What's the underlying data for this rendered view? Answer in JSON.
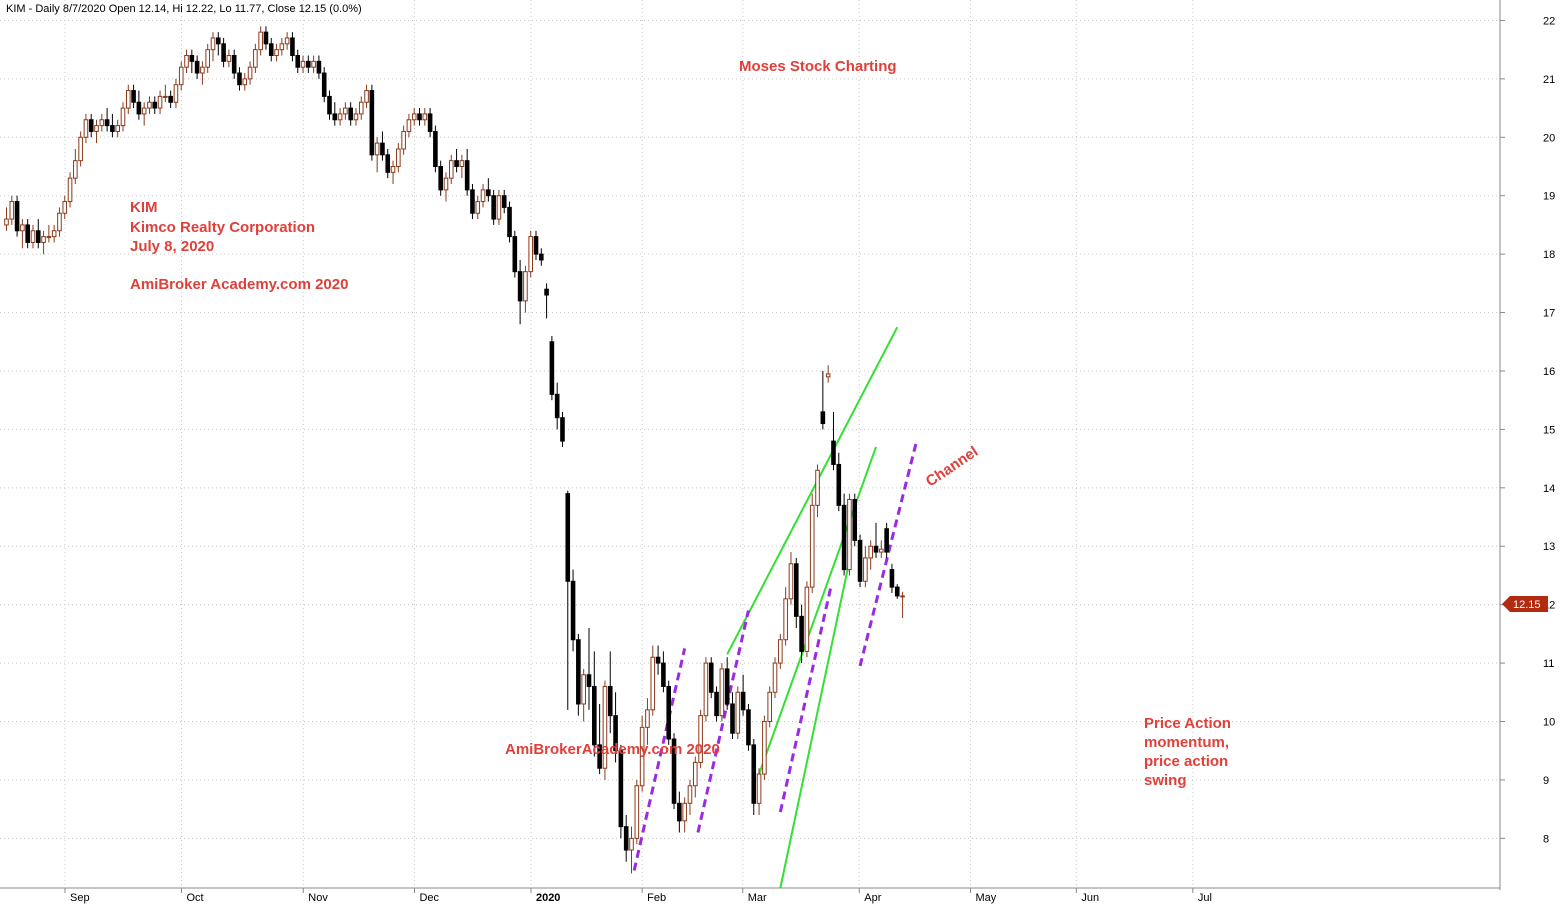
{
  "chart_data": {
    "type": "candlestick",
    "header": "KIM - Daily 8/7/2020 Open 12.14, Hi 12.22, Lo 11.77, Close 12.15 (0.0%)",
    "y_ticks": [
      8,
      9,
      10,
      11,
      12,
      13,
      14,
      15,
      16,
      17,
      18,
      19,
      20,
      21,
      22
    ],
    "ylim": [
      7.15,
      22.35
    ],
    "x_ticks": [
      {
        "label": "Sep",
        "day": 0
      },
      {
        "label": "Oct",
        "day": 22
      },
      {
        "label": "Nov",
        "day": 45
      },
      {
        "label": "Dec",
        "day": 66
      },
      {
        "label": "2020",
        "day": 88
      },
      {
        "label": "Feb",
        "day": 109
      },
      {
        "label": "Mar",
        "day": 128
      },
      {
        "label": "Apr",
        "day": 150
      },
      {
        "label": "May",
        "day": 171
      },
      {
        "label": "Jun",
        "day": 191
      },
      {
        "label": "Jul",
        "day": 213
      }
    ],
    "last_price": "12.15",
    "annotations": {
      "site_top": "Moses Stock Charting",
      "ticker": "KIM",
      "company": "Kimco Realty Corporation",
      "date": "July 8, 2020",
      "site_left": "AmiBroker Academy.com  2020",
      "site_bottom": "AmiBrokerAcademy.com  2020",
      "channel": "Channel",
      "price_action": [
        "Price Action",
        "momentum,",
        "price action",
        "swing"
      ]
    },
    "channel_lines": [
      {
        "from": [
          -33,
          11.15
        ],
        "to": [
          -1,
          16.75
        ]
      },
      {
        "from": [
          -27,
          9.1
        ],
        "to": [
          -5,
          14.7
        ]
      },
      {
        "from": [
          -23,
          7.15
        ],
        "to": [
          -10,
          12.75
        ]
      }
    ],
    "swing_lines": [
      {
        "from": [
          [
            4,
            8.45
          ]
        ],
        "to": [
          [
            10,
            11.25
          ]
        ]
      }
    ],
    "candles": [
      [
        18.5,
        18.8,
        18.4,
        18.6
      ],
      [
        18.6,
        19.0,
        18.5,
        18.9
      ],
      [
        18.9,
        19.0,
        18.3,
        18.4
      ],
      [
        18.4,
        18.6,
        18.1,
        18.5
      ],
      [
        18.5,
        18.6,
        18.1,
        18.2
      ],
      [
        18.2,
        18.5,
        18.1,
        18.4
      ],
      [
        18.4,
        18.6,
        18.1,
        18.2
      ],
      [
        18.2,
        18.4,
        18.0,
        18.3
      ],
      [
        18.3,
        18.5,
        18.2,
        18.3
      ],
      [
        18.3,
        18.5,
        18.2,
        18.4
      ],
      [
        18.4,
        18.8,
        18.3,
        18.7
      ],
      [
        18.7,
        19.0,
        18.6,
        18.9
      ],
      [
        18.9,
        19.4,
        18.8,
        19.3
      ],
      [
        19.3,
        19.8,
        19.2,
        19.6
      ],
      [
        19.6,
        20.1,
        19.5,
        20.0
      ],
      [
        20.0,
        20.4,
        19.9,
        20.3
      ],
      [
        20.3,
        20.4,
        20.0,
        20.1
      ],
      [
        20.1,
        20.3,
        19.9,
        20.2
      ],
      [
        20.2,
        20.4,
        20.1,
        20.3
      ],
      [
        20.3,
        20.5,
        20.1,
        20.2
      ],
      [
        20.2,
        20.4,
        20.0,
        20.1
      ],
      [
        20.1,
        20.3,
        20.0,
        20.2
      ],
      [
        20.2,
        20.6,
        20.1,
        20.5
      ],
      [
        20.5,
        20.9,
        20.4,
        20.8
      ],
      [
        20.8,
        20.9,
        20.5,
        20.6
      ],
      [
        20.6,
        20.8,
        20.3,
        20.4
      ],
      [
        20.4,
        20.6,
        20.2,
        20.5
      ],
      [
        20.5,
        20.7,
        20.4,
        20.6
      ],
      [
        20.6,
        20.7,
        20.4,
        20.5
      ],
      [
        20.5,
        20.8,
        20.4,
        20.7
      ],
      [
        20.7,
        20.9,
        20.6,
        20.7
      ],
      [
        20.7,
        20.8,
        20.5,
        20.6
      ],
      [
        20.6,
        21.0,
        20.5,
        20.9
      ],
      [
        20.9,
        21.3,
        20.8,
        21.2
      ],
      [
        21.2,
        21.5,
        21.1,
        21.4
      ],
      [
        21.4,
        21.5,
        21.1,
        21.3
      ],
      [
        21.3,
        21.4,
        21.0,
        21.1
      ],
      [
        21.1,
        21.3,
        20.9,
        21.2
      ],
      [
        21.2,
        21.6,
        21.1,
        21.5
      ],
      [
        21.5,
        21.8,
        21.3,
        21.7
      ],
      [
        21.7,
        21.8,
        21.4,
        21.6
      ],
      [
        21.6,
        21.7,
        21.2,
        21.3
      ],
      [
        21.3,
        21.5,
        21.2,
        21.4
      ],
      [
        21.4,
        21.5,
        21.0,
        21.1
      ],
      [
        21.1,
        21.2,
        20.8,
        20.9
      ],
      [
        20.9,
        21.1,
        20.8,
        21.0
      ],
      [
        21.0,
        21.3,
        20.9,
        21.2
      ],
      [
        21.2,
        21.6,
        21.1,
        21.5
      ],
      [
        21.5,
        21.9,
        21.4,
        21.8
      ],
      [
        21.8,
        21.9,
        21.5,
        21.6
      ],
      [
        21.6,
        21.7,
        21.3,
        21.4
      ],
      [
        21.4,
        21.6,
        21.3,
        21.5
      ],
      [
        21.5,
        21.7,
        21.4,
        21.6
      ],
      [
        21.6,
        21.8,
        21.5,
        21.7
      ],
      [
        21.7,
        21.8,
        21.3,
        21.4
      ],
      [
        21.4,
        21.5,
        21.1,
        21.2
      ],
      [
        21.2,
        21.4,
        21.1,
        21.3
      ],
      [
        21.3,
        21.4,
        21.1,
        21.2
      ],
      [
        21.2,
        21.4,
        21.1,
        21.3
      ],
      [
        21.3,
        21.4,
        21.0,
        21.1
      ],
      [
        21.1,
        21.2,
        20.6,
        20.7
      ],
      [
        20.7,
        20.8,
        20.3,
        20.4
      ],
      [
        20.4,
        20.6,
        20.2,
        20.3
      ],
      [
        20.3,
        20.5,
        20.2,
        20.4
      ],
      [
        20.4,
        20.6,
        20.3,
        20.5
      ],
      [
        20.5,
        20.6,
        20.2,
        20.3
      ],
      [
        20.3,
        20.5,
        20.2,
        20.4
      ],
      [
        20.4,
        20.7,
        20.3,
        20.6
      ],
      [
        20.6,
        20.9,
        20.5,
        20.8
      ],
      [
        20.8,
        20.9,
        19.6,
        19.7
      ],
      [
        19.7,
        20.0,
        19.4,
        19.9
      ],
      [
        19.9,
        20.1,
        19.6,
        19.7
      ],
      [
        19.7,
        19.8,
        19.3,
        19.4
      ],
      [
        19.4,
        19.6,
        19.2,
        19.5
      ],
      [
        19.5,
        19.9,
        19.4,
        19.8
      ],
      [
        19.8,
        20.2,
        19.7,
        20.1
      ],
      [
        20.1,
        20.4,
        20.0,
        20.3
      ],
      [
        20.3,
        20.5,
        20.2,
        20.4
      ],
      [
        20.4,
        20.5,
        20.2,
        20.3
      ],
      [
        20.3,
        20.5,
        20.2,
        20.4
      ],
      [
        20.4,
        20.5,
        20.0,
        20.1
      ],
      [
        20.1,
        20.2,
        19.4,
        19.5
      ],
      [
        19.5,
        19.6,
        19.0,
        19.1
      ],
      [
        19.1,
        19.4,
        18.9,
        19.3
      ],
      [
        19.3,
        19.7,
        19.2,
        19.6
      ],
      [
        19.6,
        19.8,
        19.4,
        19.5
      ],
      [
        19.5,
        19.7,
        19.3,
        19.6
      ],
      [
        19.6,
        19.8,
        19.0,
        19.1
      ],
      [
        19.1,
        19.2,
        18.6,
        18.7
      ],
      [
        18.7,
        19.0,
        18.6,
        18.9
      ],
      [
        18.9,
        19.2,
        18.8,
        19.1
      ],
      [
        19.1,
        19.3,
        18.9,
        19.0
      ],
      [
        19.0,
        19.1,
        18.5,
        18.6
      ],
      [
        18.6,
        19.1,
        18.5,
        19.0
      ],
      [
        19.0,
        19.1,
        18.7,
        18.8
      ],
      [
        18.8,
        18.9,
        18.2,
        18.3
      ],
      [
        18.3,
        18.4,
        17.6,
        17.7
      ],
      [
        17.7,
        17.9,
        16.8,
        17.2
      ],
      [
        17.2,
        17.8,
        17.0,
        17.7
      ],
      [
        17.7,
        18.4,
        17.6,
        18.3
      ],
      [
        18.3,
        18.4,
        17.9,
        18.0
      ],
      [
        18.0,
        18.1,
        17.8,
        17.9
      ],
      [
        17.4,
        17.5,
        16.9,
        17.3
      ],
      [
        16.5,
        16.6,
        15.5,
        15.6
      ],
      [
        15.6,
        15.8,
        15.0,
        15.2
      ],
      [
        15.2,
        15.3,
        14.7,
        14.8
      ],
      [
        13.9,
        13.95,
        10.2,
        12.4
      ],
      [
        12.4,
        12.6,
        11.2,
        11.4
      ],
      [
        11.4,
        11.5,
        10.1,
        10.3
      ],
      [
        10.3,
        10.9,
        10.0,
        10.8
      ],
      [
        10.8,
        11.6,
        10.2,
        10.6
      ],
      [
        10.6,
        11.2,
        9.4,
        9.6
      ],
      [
        9.6,
        10.3,
        9.1,
        9.2
      ],
      [
        9.2,
        10.7,
        9.0,
        10.6
      ],
      [
        10.6,
        11.2,
        9.8,
        10.1
      ],
      [
        10.1,
        10.5,
        9.3,
        9.5
      ],
      [
        9.5,
        9.6,
        8.0,
        8.2
      ],
      [
        8.2,
        8.4,
        7.6,
        7.8
      ],
      [
        7.8,
        8.2,
        7.4,
        8.0
      ],
      [
        8.0,
        9.0,
        7.9,
        8.9
      ],
      [
        8.9,
        10.1,
        8.8,
        9.9
      ],
      [
        9.9,
        10.4,
        9.6,
        10.2
      ],
      [
        10.2,
        11.3,
        10.1,
        11.1
      ],
      [
        11.1,
        11.3,
        10.8,
        11.0
      ],
      [
        11.0,
        11.2,
        10.5,
        10.6
      ],
      [
        10.6,
        10.7,
        9.6,
        9.7
      ],
      [
        9.7,
        9.8,
        8.5,
        8.6
      ],
      [
        8.6,
        8.8,
        8.1,
        8.3
      ],
      [
        8.3,
        8.7,
        8.1,
        8.6
      ],
      [
        8.6,
        9.0,
        8.4,
        8.9
      ],
      [
        8.9,
        9.4,
        8.7,
        9.3
      ],
      [
        9.3,
        10.2,
        9.2,
        10.1
      ],
      [
        10.1,
        11.1,
        10.0,
        11.0
      ],
      [
        11.0,
        11.1,
        10.4,
        10.5
      ],
      [
        10.5,
        10.6,
        10.0,
        10.1
      ],
      [
        10.1,
        11.0,
        10.0,
        10.9
      ],
      [
        10.9,
        11.1,
        10.2,
        10.3
      ],
      [
        10.3,
        10.5,
        9.7,
        9.8
      ],
      [
        9.8,
        10.6,
        9.7,
        10.5
      ],
      [
        10.5,
        10.8,
        10.1,
        10.2
      ],
      [
        10.2,
        10.3,
        9.5,
        9.6
      ],
      [
        9.6,
        9.7,
        8.4,
        8.6
      ],
      [
        8.6,
        9.2,
        8.4,
        9.1
      ],
      [
        9.1,
        10.1,
        9.0,
        10.0
      ],
      [
        10.0,
        10.6,
        9.9,
        10.5
      ],
      [
        10.5,
        11.1,
        10.4,
        11.0
      ],
      [
        11.0,
        11.5,
        10.9,
        11.4
      ],
      [
        11.4,
        12.3,
        11.3,
        12.1
      ],
      [
        12.1,
        12.9,
        12.0,
        12.7
      ],
      [
        12.7,
        12.8,
        11.6,
        11.8
      ],
      [
        11.8,
        12.0,
        11.0,
        11.2
      ],
      [
        11.2,
        12.4,
        11.1,
        12.3
      ],
      [
        12.3,
        13.9,
        12.2,
        13.7
      ],
      [
        13.7,
        14.4,
        13.5,
        14.3
      ],
      [
        15.3,
        16.0,
        15.0,
        15.1
      ],
      [
        15.9,
        16.1,
        15.8,
        15.95
      ],
      [
        14.8,
        15.3,
        14.3,
        14.4
      ],
      [
        14.4,
        14.6,
        13.6,
        13.7
      ],
      [
        13.7,
        13.9,
        12.5,
        12.6
      ],
      [
        12.6,
        13.9,
        12.5,
        13.8
      ],
      [
        13.8,
        13.9,
        13.0,
        13.1
      ],
      [
        13.1,
        13.2,
        12.3,
        12.4
      ],
      [
        12.4,
        13.0,
        12.3,
        12.8
      ],
      [
        12.8,
        13.1,
        12.6,
        13.0
      ],
      [
        13.0,
        13.4,
        12.8,
        12.9
      ],
      [
        12.9,
        13.1,
        12.8,
        12.95
      ],
      [
        13.3,
        13.4,
        12.8,
        12.9
      ],
      [
        12.6,
        12.7,
        12.2,
        12.3
      ],
      [
        12.3,
        12.35,
        12.1,
        12.15
      ],
      [
        12.14,
        12.22,
        11.77,
        12.15
      ]
    ]
  }
}
